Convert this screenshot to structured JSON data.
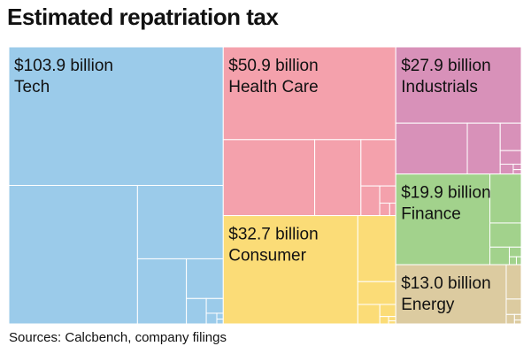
{
  "chart_data": {
    "type": "treemap",
    "title": "Estimated repatriation tax",
    "source": "Sources: Calcbench, company filings",
    "unit": "billion",
    "sectors": [
      {
        "name": "Tech",
        "value": 103.9,
        "amount_label": "$103.9 billion",
        "color": "#9bcbea"
      },
      {
        "name": "Health Care",
        "value": 50.9,
        "amount_label": "$50.9 billion",
        "color": "#f4a1ac"
      },
      {
        "name": "Industrials",
        "value": 27.9,
        "amount_label": "$27.9 billion",
        "color": "#d891b9"
      },
      {
        "name": "Consumer",
        "value": 32.7,
        "amount_label": "$32.7 billion",
        "color": "#fbdc77"
      },
      {
        "name": "Finance",
        "value": 19.9,
        "amount_label": "$19.9 billion",
        "color": "#a2d28c"
      },
      {
        "name": "Energy",
        "value": 13.0,
        "amount_label": "$13.0 billion",
        "color": "#dccba0"
      }
    ]
  }
}
